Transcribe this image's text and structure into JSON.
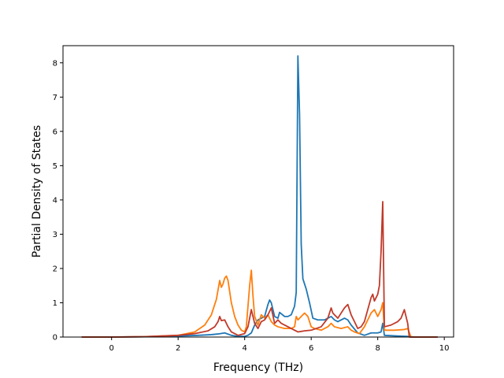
{
  "chart_data": {
    "type": "line",
    "title": "",
    "xlabel": "Frequency (THz)",
    "ylabel": "Partial Density of States",
    "xlim": [
      -1.46,
      10.28
    ],
    "ylim": [
      0,
      8.5
    ],
    "xticks": [
      0,
      2,
      4,
      6,
      8,
      10
    ],
    "yticks": [
      0,
      1,
      2,
      3,
      4,
      5,
      6,
      7,
      8
    ],
    "grid": false,
    "legend": "none",
    "series": [
      {
        "color": "#1f77b4",
        "points": [
          [
            -0.9,
            0
          ],
          [
            0.0,
            0.0
          ],
          [
            1.0,
            0.01
          ],
          [
            2.0,
            0.03
          ],
          [
            2.6,
            0.05
          ],
          [
            3.0,
            0.07
          ],
          [
            3.2,
            0.09
          ],
          [
            3.4,
            0.12
          ],
          [
            3.6,
            0.05
          ],
          [
            3.8,
            0.02
          ],
          [
            4.0,
            0.02
          ],
          [
            4.1,
            0.05
          ],
          [
            4.2,
            0.12
          ],
          [
            4.3,
            0.35
          ],
          [
            4.4,
            0.5
          ],
          [
            4.5,
            0.55
          ],
          [
            4.6,
            0.6
          ],
          [
            4.7,
            0.95
          ],
          [
            4.75,
            1.08
          ],
          [
            4.8,
            1.0
          ],
          [
            4.9,
            0.6
          ],
          [
            5.0,
            0.55
          ],
          [
            5.05,
            0.72
          ],
          [
            5.1,
            0.68
          ],
          [
            5.2,
            0.6
          ],
          [
            5.3,
            0.6
          ],
          [
            5.4,
            0.65
          ],
          [
            5.5,
            0.9
          ],
          [
            5.55,
            1.3
          ],
          [
            5.6,
            8.2
          ],
          [
            5.65,
            6.5
          ],
          [
            5.7,
            2.7
          ],
          [
            5.75,
            1.7
          ],
          [
            5.85,
            1.4
          ],
          [
            5.95,
            1.0
          ],
          [
            6.05,
            0.55
          ],
          [
            6.2,
            0.5
          ],
          [
            6.4,
            0.5
          ],
          [
            6.5,
            0.55
          ],
          [
            6.6,
            0.6
          ],
          [
            6.7,
            0.5
          ],
          [
            6.8,
            0.45
          ],
          [
            7.0,
            0.55
          ],
          [
            7.1,
            0.5
          ],
          [
            7.2,
            0.35
          ],
          [
            7.4,
            0.12
          ],
          [
            7.6,
            0.05
          ],
          [
            7.8,
            0.12
          ],
          [
            8.0,
            0.12
          ],
          [
            8.1,
            0.15
          ],
          [
            8.15,
            0.4
          ],
          [
            8.2,
            0.05
          ],
          [
            8.6,
            0.03
          ],
          [
            8.9,
            0.02
          ],
          [
            9.1,
            0
          ],
          [
            9.8,
            0
          ]
        ]
      },
      {
        "color": "#ff7f0e",
        "points": [
          [
            -0.9,
            0
          ],
          [
            0.0,
            0.0
          ],
          [
            1.0,
            0.01
          ],
          [
            2.0,
            0.05
          ],
          [
            2.5,
            0.15
          ],
          [
            2.8,
            0.35
          ],
          [
            3.0,
            0.65
          ],
          [
            3.15,
            1.1
          ],
          [
            3.25,
            1.65
          ],
          [
            3.3,
            1.45
          ],
          [
            3.35,
            1.55
          ],
          [
            3.4,
            1.72
          ],
          [
            3.45,
            1.78
          ],
          [
            3.5,
            1.65
          ],
          [
            3.6,
            1.0
          ],
          [
            3.7,
            0.6
          ],
          [
            3.8,
            0.35
          ],
          [
            3.9,
            0.2
          ],
          [
            4.0,
            0.15
          ],
          [
            4.05,
            0.3
          ],
          [
            4.1,
            0.9
          ],
          [
            4.15,
            1.5
          ],
          [
            4.2,
            1.95
          ],
          [
            4.25,
            1.2
          ],
          [
            4.3,
            0.6
          ],
          [
            4.4,
            0.35
          ],
          [
            4.5,
            0.65
          ],
          [
            4.6,
            0.55
          ],
          [
            4.7,
            0.65
          ],
          [
            4.8,
            0.45
          ],
          [
            4.9,
            0.35
          ],
          [
            5.0,
            0.3
          ],
          [
            5.2,
            0.25
          ],
          [
            5.4,
            0.25
          ],
          [
            5.5,
            0.3
          ],
          [
            5.55,
            0.6
          ],
          [
            5.6,
            0.5
          ],
          [
            5.7,
            0.6
          ],
          [
            5.8,
            0.7
          ],
          [
            5.9,
            0.6
          ],
          [
            6.0,
            0.3
          ],
          [
            6.1,
            0.25
          ],
          [
            6.3,
            0.2
          ],
          [
            6.5,
            0.3
          ],
          [
            6.6,
            0.4
          ],
          [
            6.7,
            0.3
          ],
          [
            6.9,
            0.25
          ],
          [
            7.1,
            0.3
          ],
          [
            7.2,
            0.2
          ],
          [
            7.3,
            0.15
          ],
          [
            7.45,
            0.1
          ],
          [
            7.6,
            0.3
          ],
          [
            7.7,
            0.5
          ],
          [
            7.8,
            0.7
          ],
          [
            7.9,
            0.8
          ],
          [
            8.0,
            0.6
          ],
          [
            8.1,
            0.8
          ],
          [
            8.15,
            1.0
          ],
          [
            8.2,
            0.2
          ],
          [
            8.5,
            0.2
          ],
          [
            8.8,
            0.22
          ],
          [
            8.9,
            0.25
          ],
          [
            9.0,
            0.0
          ],
          [
            9.8,
            0
          ]
        ]
      },
      {
        "color": "#c03a2b",
        "points": [
          [
            -0.9,
            0
          ],
          [
            0.0,
            0.0
          ],
          [
            1.0,
            0.01
          ],
          [
            2.0,
            0.05
          ],
          [
            2.5,
            0.1
          ],
          [
            2.9,
            0.18
          ],
          [
            3.1,
            0.3
          ],
          [
            3.2,
            0.45
          ],
          [
            3.25,
            0.6
          ],
          [
            3.3,
            0.48
          ],
          [
            3.4,
            0.5
          ],
          [
            3.5,
            0.3
          ],
          [
            3.6,
            0.15
          ],
          [
            3.8,
            0.05
          ],
          [
            4.0,
            0.1
          ],
          [
            4.1,
            0.3
          ],
          [
            4.2,
            0.8
          ],
          [
            4.3,
            0.4
          ],
          [
            4.4,
            0.25
          ],
          [
            4.5,
            0.45
          ],
          [
            4.6,
            0.5
          ],
          [
            4.7,
            0.65
          ],
          [
            4.8,
            0.85
          ],
          [
            4.9,
            0.4
          ],
          [
            5.0,
            0.5
          ],
          [
            5.1,
            0.4
          ],
          [
            5.3,
            0.3
          ],
          [
            5.5,
            0.2
          ],
          [
            5.6,
            0.15
          ],
          [
            5.8,
            0.18
          ],
          [
            6.0,
            0.2
          ],
          [
            6.3,
            0.3
          ],
          [
            6.5,
            0.55
          ],
          [
            6.6,
            0.85
          ],
          [
            6.65,
            0.7
          ],
          [
            6.7,
            0.65
          ],
          [
            6.8,
            0.55
          ],
          [
            7.0,
            0.85
          ],
          [
            7.1,
            0.95
          ],
          [
            7.2,
            0.65
          ],
          [
            7.3,
            0.45
          ],
          [
            7.4,
            0.25
          ],
          [
            7.5,
            0.3
          ],
          [
            7.6,
            0.45
          ],
          [
            7.7,
            0.8
          ],
          [
            7.8,
            1.15
          ],
          [
            7.85,
            1.25
          ],
          [
            7.9,
            1.05
          ],
          [
            8.0,
            1.25
          ],
          [
            8.05,
            1.5
          ],
          [
            8.1,
            2.5
          ],
          [
            8.15,
            3.95
          ],
          [
            8.2,
            0.3
          ],
          [
            8.4,
            0.35
          ],
          [
            8.6,
            0.45
          ],
          [
            8.7,
            0.55
          ],
          [
            8.8,
            0.8
          ],
          [
            8.9,
            0.4
          ],
          [
            8.95,
            0.0
          ],
          [
            9.8,
            0
          ]
        ]
      }
    ]
  }
}
